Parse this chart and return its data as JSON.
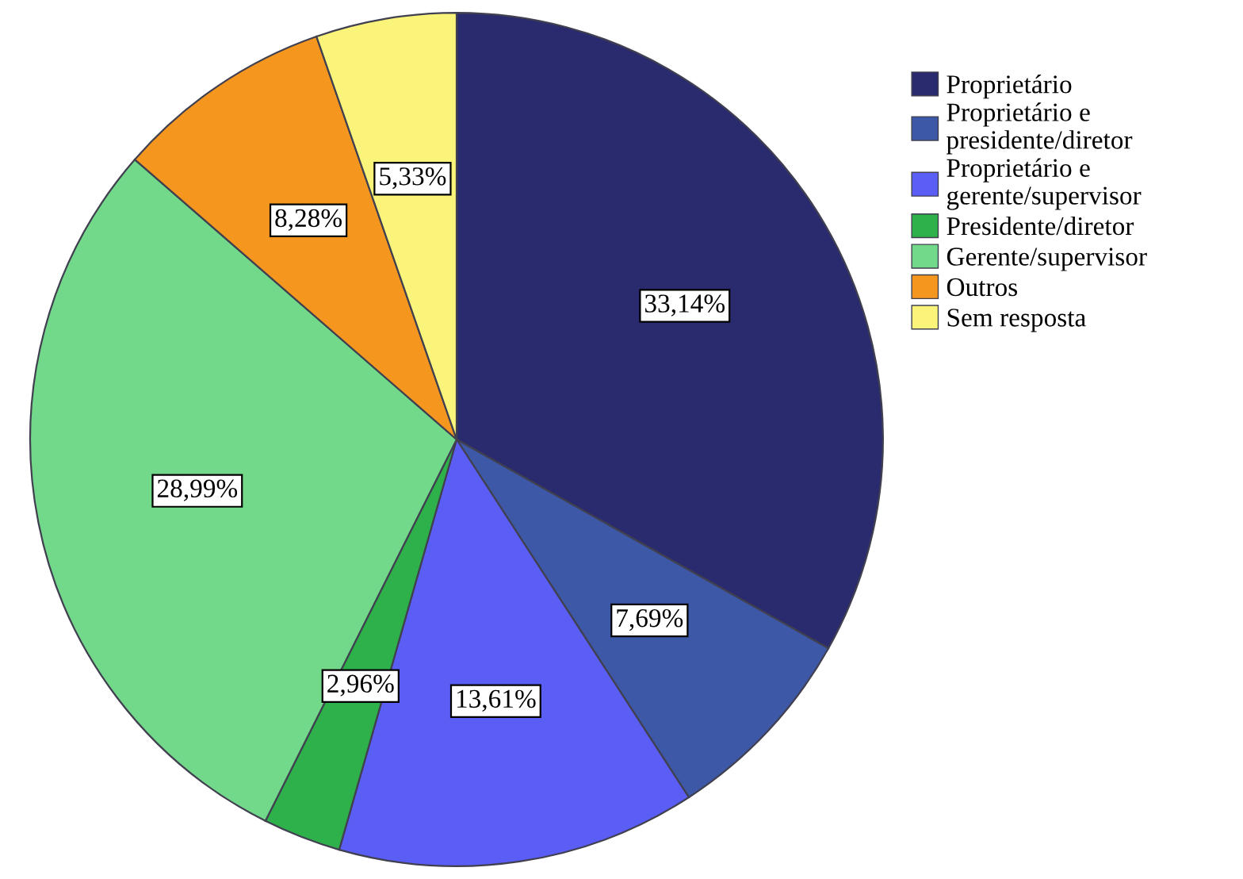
{
  "chart_data": {
    "type": "pie",
    "categories": [
      "Proprietário",
      "Proprietário e\npresidente/diretor",
      "Proprietário e\ngerente/supervisor",
      "Presidente/diretor",
      "Gerente/supervisor",
      "Outros",
      "Sem resposta"
    ],
    "values": [
      33.14,
      7.69,
      13.61,
      2.96,
      28.99,
      8.28,
      5.33
    ],
    "value_labels": [
      "33,14%",
      "7,69%",
      "13,61%",
      "2,96%",
      "28,99%",
      "8,28%",
      "5,33%"
    ],
    "colors": [
      "#2a2a6e",
      "#3e58a8",
      "#5b5ef5",
      "#2eb04a",
      "#72d98a",
      "#f5961e",
      "#fbf47a"
    ],
    "legend": "top right"
  }
}
